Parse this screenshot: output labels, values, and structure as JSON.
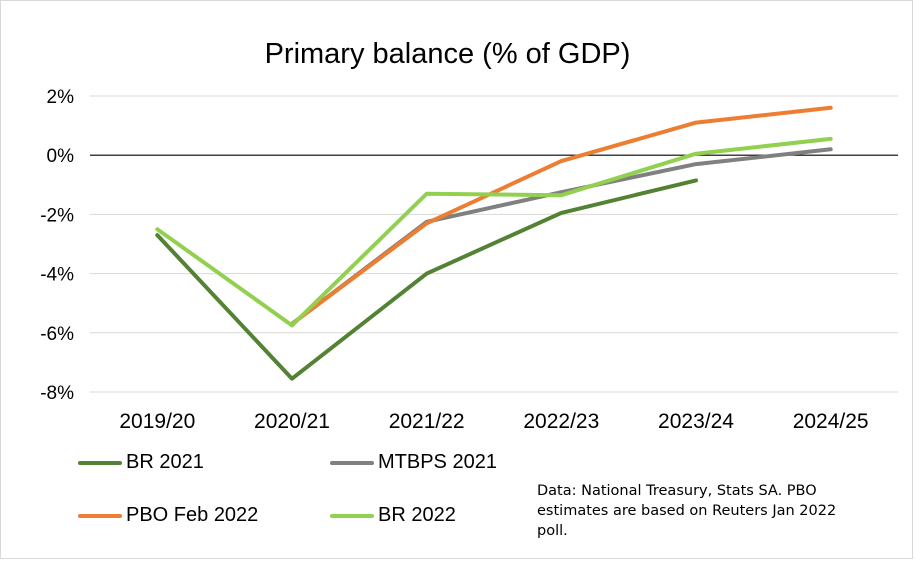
{
  "chart_data": {
    "type": "line",
    "title": "Primary balance (% of GDP)",
    "categories": [
      "2019/20",
      "2020/21",
      "2021/22",
      "2022/23",
      "2023/24",
      "2024/25"
    ],
    "ylim": [
      -8,
      2
    ],
    "yticks": [
      2,
      0,
      -2,
      -4,
      -6,
      -8
    ],
    "ytick_labels": [
      "2%",
      "0%",
      "-2%",
      "-4%",
      "-6%",
      "-8%"
    ],
    "grid": true,
    "legend_placement": "bottom",
    "series": [
      {
        "name": "BR 2021",
        "color": "#548235",
        "values": [
          -2.7,
          -7.55,
          -4.0,
          -1.95,
          -0.85,
          null
        ]
      },
      {
        "name": "MTBPS 2021",
        "color": "#808080",
        "values": [
          null,
          -5.7,
          -2.25,
          -1.25,
          -0.3,
          0.2
        ]
      },
      {
        "name": "PBO Feb 2022",
        "color": "#ED7D31",
        "values": [
          null,
          -5.7,
          -2.3,
          -0.2,
          1.1,
          1.6
        ]
      },
      {
        "name": "BR 2022",
        "color": "#92D050",
        "values": [
          -2.5,
          -5.75,
          -1.3,
          -1.35,
          0.05,
          0.55
        ]
      }
    ],
    "source_note": "Data: National Treasury, Stats SA. PBO estimates are based on Reuters Jan 2022 poll."
  }
}
